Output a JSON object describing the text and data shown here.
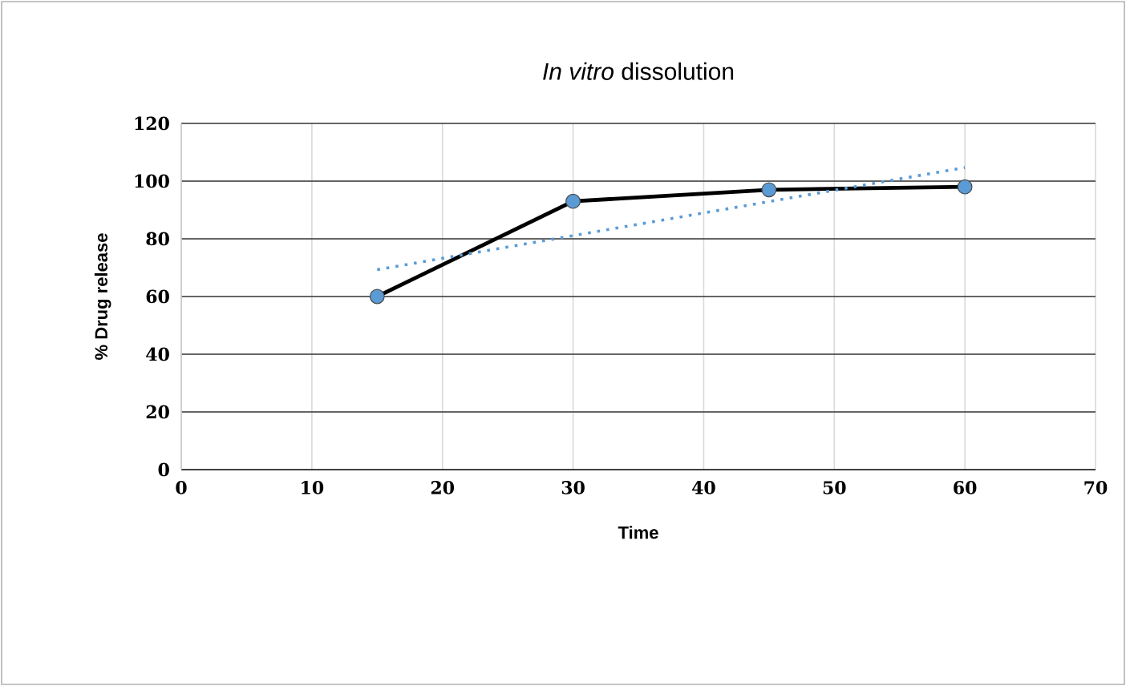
{
  "chart_data": {
    "type": "line",
    "title": "*In vitro* dissolution",
    "xlabel": "Time",
    "ylabel": "% Drug release",
    "x": [
      15,
      30,
      45,
      60
    ],
    "series": [
      {
        "color": "#000000",
        "colors": [
          "#5b9bd5",
          "#5b9bd5",
          "#5b9bd5",
          "#5b9bd5"
        ],
        "marker": "circle",
        "line_style": "solid",
        "values": [
          60,
          93,
          97,
          98
        ]
      },
      {
        "type": "line",
        "x": [
          15,
          60
        ],
        "color": "#5b9bd5",
        "marker": "none",
        "line_style": "dotted",
        "values": [
          69.3,
          104.7
        ]
      }
    ],
    "xlim": [
      0,
      70
    ],
    "xticks": [
      0,
      10,
      20,
      30,
      40,
      50,
      60,
      70
    ],
    "ylim": [
      0,
      120
    ],
    "yticks": [
      0,
      20,
      40,
      60,
      80,
      100,
      120
    ],
    "grid": true
  }
}
